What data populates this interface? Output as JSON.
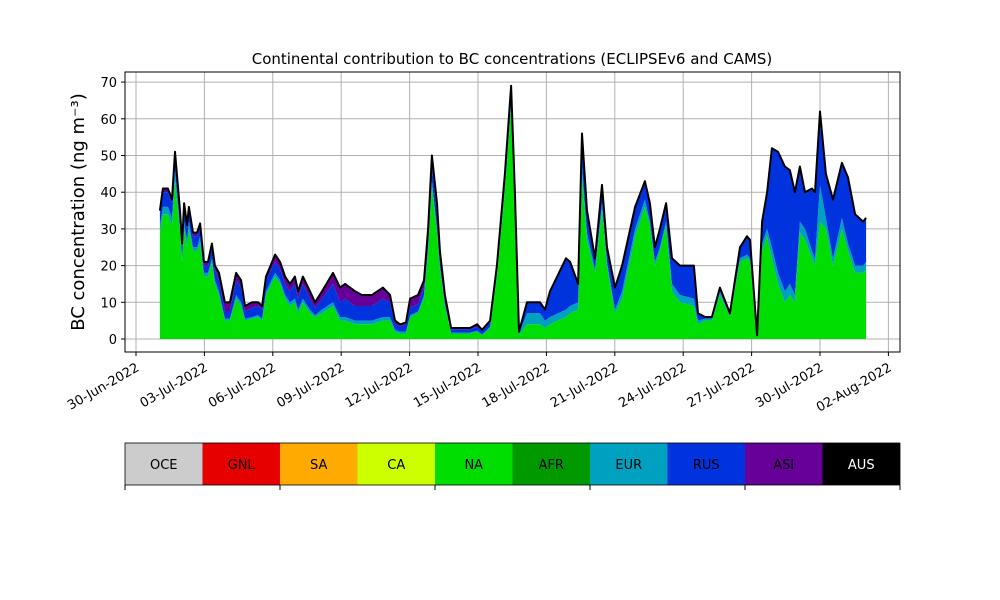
{
  "chart_data": {
    "type": "area",
    "stacked": true,
    "title": "Continental contribution to BC concentrations (ECLIPSEv6 and CAMS)",
    "xlabel": "",
    "ylabel": "BC concentration (ng m⁻³)",
    "x_unit": "days since 30-Jun-2022",
    "xlim": [
      -0.5,
      33.5
    ],
    "ylim": [
      -3.5,
      73
    ],
    "grid": true,
    "yticks": [
      0,
      10,
      20,
      30,
      40,
      50,
      60,
      70
    ],
    "xticks": [
      0,
      3,
      6,
      9,
      12,
      15,
      18,
      21,
      24,
      27,
      30,
      33
    ],
    "xtick_labels": [
      "30-Jun-2022",
      "03-Jul-2022",
      "06-Jul-2022",
      "09-Jul-2022",
      "12-Jul-2022",
      "15-Jul-2022",
      "18-Jul-2022",
      "21-Jul-2022",
      "24-Jul-2022",
      "27-Jul-2022",
      "30-Jul-2022",
      "02-Aug-2022"
    ],
    "x": [
      1.05,
      1.18,
      1.4,
      1.58,
      1.71,
      1.93,
      2.02,
      2.11,
      2.24,
      2.32,
      2.5,
      2.68,
      2.81,
      2.98,
      3.16,
      3.33,
      3.46,
      3.64,
      3.9,
      4.12,
      4.39,
      4.61,
      4.78,
      5.09,
      5.35,
      5.53,
      5.7,
      6.1,
      6.32,
      6.54,
      6.75,
      6.97,
      7.11,
      7.32,
      7.63,
      7.85,
      8.16,
      8.64,
      8.95,
      9.17,
      9.61,
      9.91,
      10.35,
      10.83,
      11.14,
      11.36,
      11.58,
      11.84,
      12.02,
      12.37,
      12.63,
      12.81,
      12.98,
      13.2,
      13.33,
      13.55,
      13.82,
      14.21,
      14.65,
      14.96,
      15.18,
      15.53,
      15.83,
      16.18,
      16.45,
      16.62,
      16.8,
      17.15,
      17.72,
      17.94,
      18.16,
      18.86,
      19.04,
      19.39,
      19.56,
      19.78,
      20.13,
      20.44,
      20.66,
      21.01,
      21.32,
      21.89,
      22.32,
      22.54,
      22.76,
      22.98,
      23.25,
      23.51,
      23.86,
      24.47,
      24.65,
      24.96,
      25.26,
      25.61,
      26.05,
      26.49,
      26.8,
      26.93,
      27.24,
      27.46,
      27.68,
      27.89,
      28.16,
      28.46,
      28.68,
      28.9,
      29.12,
      29.34,
      29.65,
      29.78,
      30.0,
      30.26,
      30.57,
      30.96,
      31.23,
      31.54,
      31.89,
      32.02
    ],
    "series": [
      {
        "name": "NA",
        "color": "#00dd00",
        "values": [
          29,
          34,
          34,
          31,
          43,
          29,
          21,
          30,
          25,
          30,
          24,
          24,
          26,
          17,
          17,
          21,
          15,
          12,
          5,
          5,
          11,
          9,
          5,
          5.5,
          6,
          5,
          12,
          17,
          15,
          11,
          9,
          10,
          7,
          10,
          7,
          6,
          7,
          9,
          5,
          5,
          4,
          4,
          4,
          5,
          5,
          2,
          1.5,
          1.5,
          6,
          7,
          11,
          24,
          42,
          29,
          19,
          9,
          1.5,
          1.5,
          1.5,
          2,
          1,
          3,
          17,
          40,
          63,
          35,
          1,
          4,
          4,
          3,
          4,
          6,
          7,
          8,
          44,
          27,
          18,
          35,
          20,
          7,
          11,
          28,
          36,
          31,
          20,
          24,
          31,
          13,
          10,
          9,
          4,
          5,
          5,
          12,
          6,
          21,
          22,
          21,
          0.5,
          24,
          28,
          22,
          15,
          10,
          12,
          10,
          29,
          27,
          22,
          20,
          32,
          30,
          20,
          30,
          24,
          18,
          18,
          19
        ]
      },
      {
        "name": "EUR",
        "color": "#00a0c0",
        "values": [
          2,
          2,
          2,
          2,
          3,
          2,
          1,
          2,
          2,
          2,
          1,
          1,
          2,
          1,
          1,
          1,
          1,
          1,
          0.5,
          0.5,
          1,
          1,
          0.5,
          0.5,
          0.5,
          0.5,
          1,
          1,
          1,
          1,
          1,
          1,
          1,
          1,
          1,
          0.5,
          1,
          1,
          1,
          1,
          1,
          1,
          1,
          1,
          1,
          0.5,
          0.5,
          0.5,
          0.5,
          0.5,
          1,
          1,
          1,
          1,
          1,
          0.5,
          0.2,
          0.2,
          0.2,
          0.3,
          0.2,
          0.3,
          1,
          2,
          2,
          2,
          0.5,
          3,
          3,
          2,
          2,
          2,
          2,
          2,
          3,
          2,
          1,
          2,
          1,
          1,
          2,
          2,
          2,
          1,
          1,
          1,
          1,
          2,
          2,
          2,
          1,
          0.5,
          0.5,
          1,
          0.5,
          1,
          1,
          1,
          0.2,
          2,
          2,
          3,
          3,
          3,
          3,
          2,
          3,
          3,
          2,
          2,
          10,
          3,
          2,
          3,
          2,
          2,
          2,
          2
        ]
      },
      {
        "name": "RUS",
        "color": "#0033dd",
        "values": [
          3,
          4,
          4,
          4,
          4,
          3,
          3,
          4,
          3,
          3,
          3,
          3,
          3,
          2,
          2,
          3,
          3,
          3,
          2,
          2,
          4,
          4,
          2,
          2.5,
          2.5,
          2.5,
          3,
          3,
          3,
          3,
          3,
          4,
          3,
          4,
          3,
          2,
          3,
          5,
          4,
          5,
          4,
          4,
          4,
          5,
          4,
          1.5,
          1.5,
          2,
          2,
          2,
          2,
          3,
          4,
          4,
          2,
          1.5,
          1,
          1,
          1,
          1,
          1,
          1.5,
          2,
          3,
          3,
          3,
          0.5,
          3,
          3,
          3,
          7,
          14,
          12,
          5,
          9,
          6,
          3,
          5,
          4,
          6,
          7,
          6,
          5,
          5,
          4,
          5,
          5,
          7,
          8,
          9,
          2,
          0.5,
          0.5,
          1,
          0.5,
          3,
          5,
          5,
          0.3,
          6,
          10,
          27,
          33,
          34,
          31,
          28,
          15,
          10,
          17,
          18,
          20,
          12,
          16,
          15,
          18,
          14,
          12,
          12
        ]
      },
      {
        "name": "ASI",
        "color": "#660099",
        "values": [
          1,
          1,
          1,
          1,
          1,
          1,
          1,
          1,
          1,
          1,
          1,
          1,
          0.5,
          1,
          1,
          1,
          1,
          2,
          2.5,
          2.5,
          2,
          2,
          1.5,
          1.5,
          1,
          1,
          1,
          2,
          2,
          2,
          2,
          2,
          2,
          2,
          2,
          1.5,
          2,
          3,
          4,
          4,
          4,
          3,
          3,
          3,
          2,
          1,
          0.5,
          0.5,
          2.5,
          2.5,
          2,
          2,
          3,
          3,
          2,
          1,
          0.3,
          0.3,
          0.3,
          0.7,
          0.3,
          0.2,
          0,
          0,
          1,
          0,
          0,
          0,
          0,
          0,
          0,
          0,
          0,
          0,
          0,
          0,
          0,
          0,
          0,
          0,
          0,
          0,
          0,
          0,
          0,
          0,
          0,
          0,
          0,
          0,
          0,
          0,
          0,
          0,
          0,
          0,
          0,
          0,
          0,
          0,
          0,
          0,
          0,
          0,
          0,
          0,
          0,
          0,
          0,
          0,
          0,
          0,
          0,
          0,
          0,
          0,
          0,
          0
        ]
      }
    ],
    "total_outline_color": "#000000",
    "legend": {
      "placement": "bottom (colorbar)",
      "entries": [
        {
          "label": "OCE",
          "color": "#cccccc"
        },
        {
          "label": "GNL",
          "color": "#e60000"
        },
        {
          "label": "SA",
          "color": "#ffaa00"
        },
        {
          "label": "CA",
          "color": "#ccff00"
        },
        {
          "label": "NA",
          "color": "#00dd00"
        },
        {
          "label": "AFR",
          "color": "#009900"
        },
        {
          "label": "EUR",
          "color": "#00a0c0"
        },
        {
          "label": "RUS",
          "color": "#0033dd"
        },
        {
          "label": "ASI",
          "color": "#660099"
        },
        {
          "label": "AUS",
          "color": "#000000"
        }
      ]
    }
  }
}
